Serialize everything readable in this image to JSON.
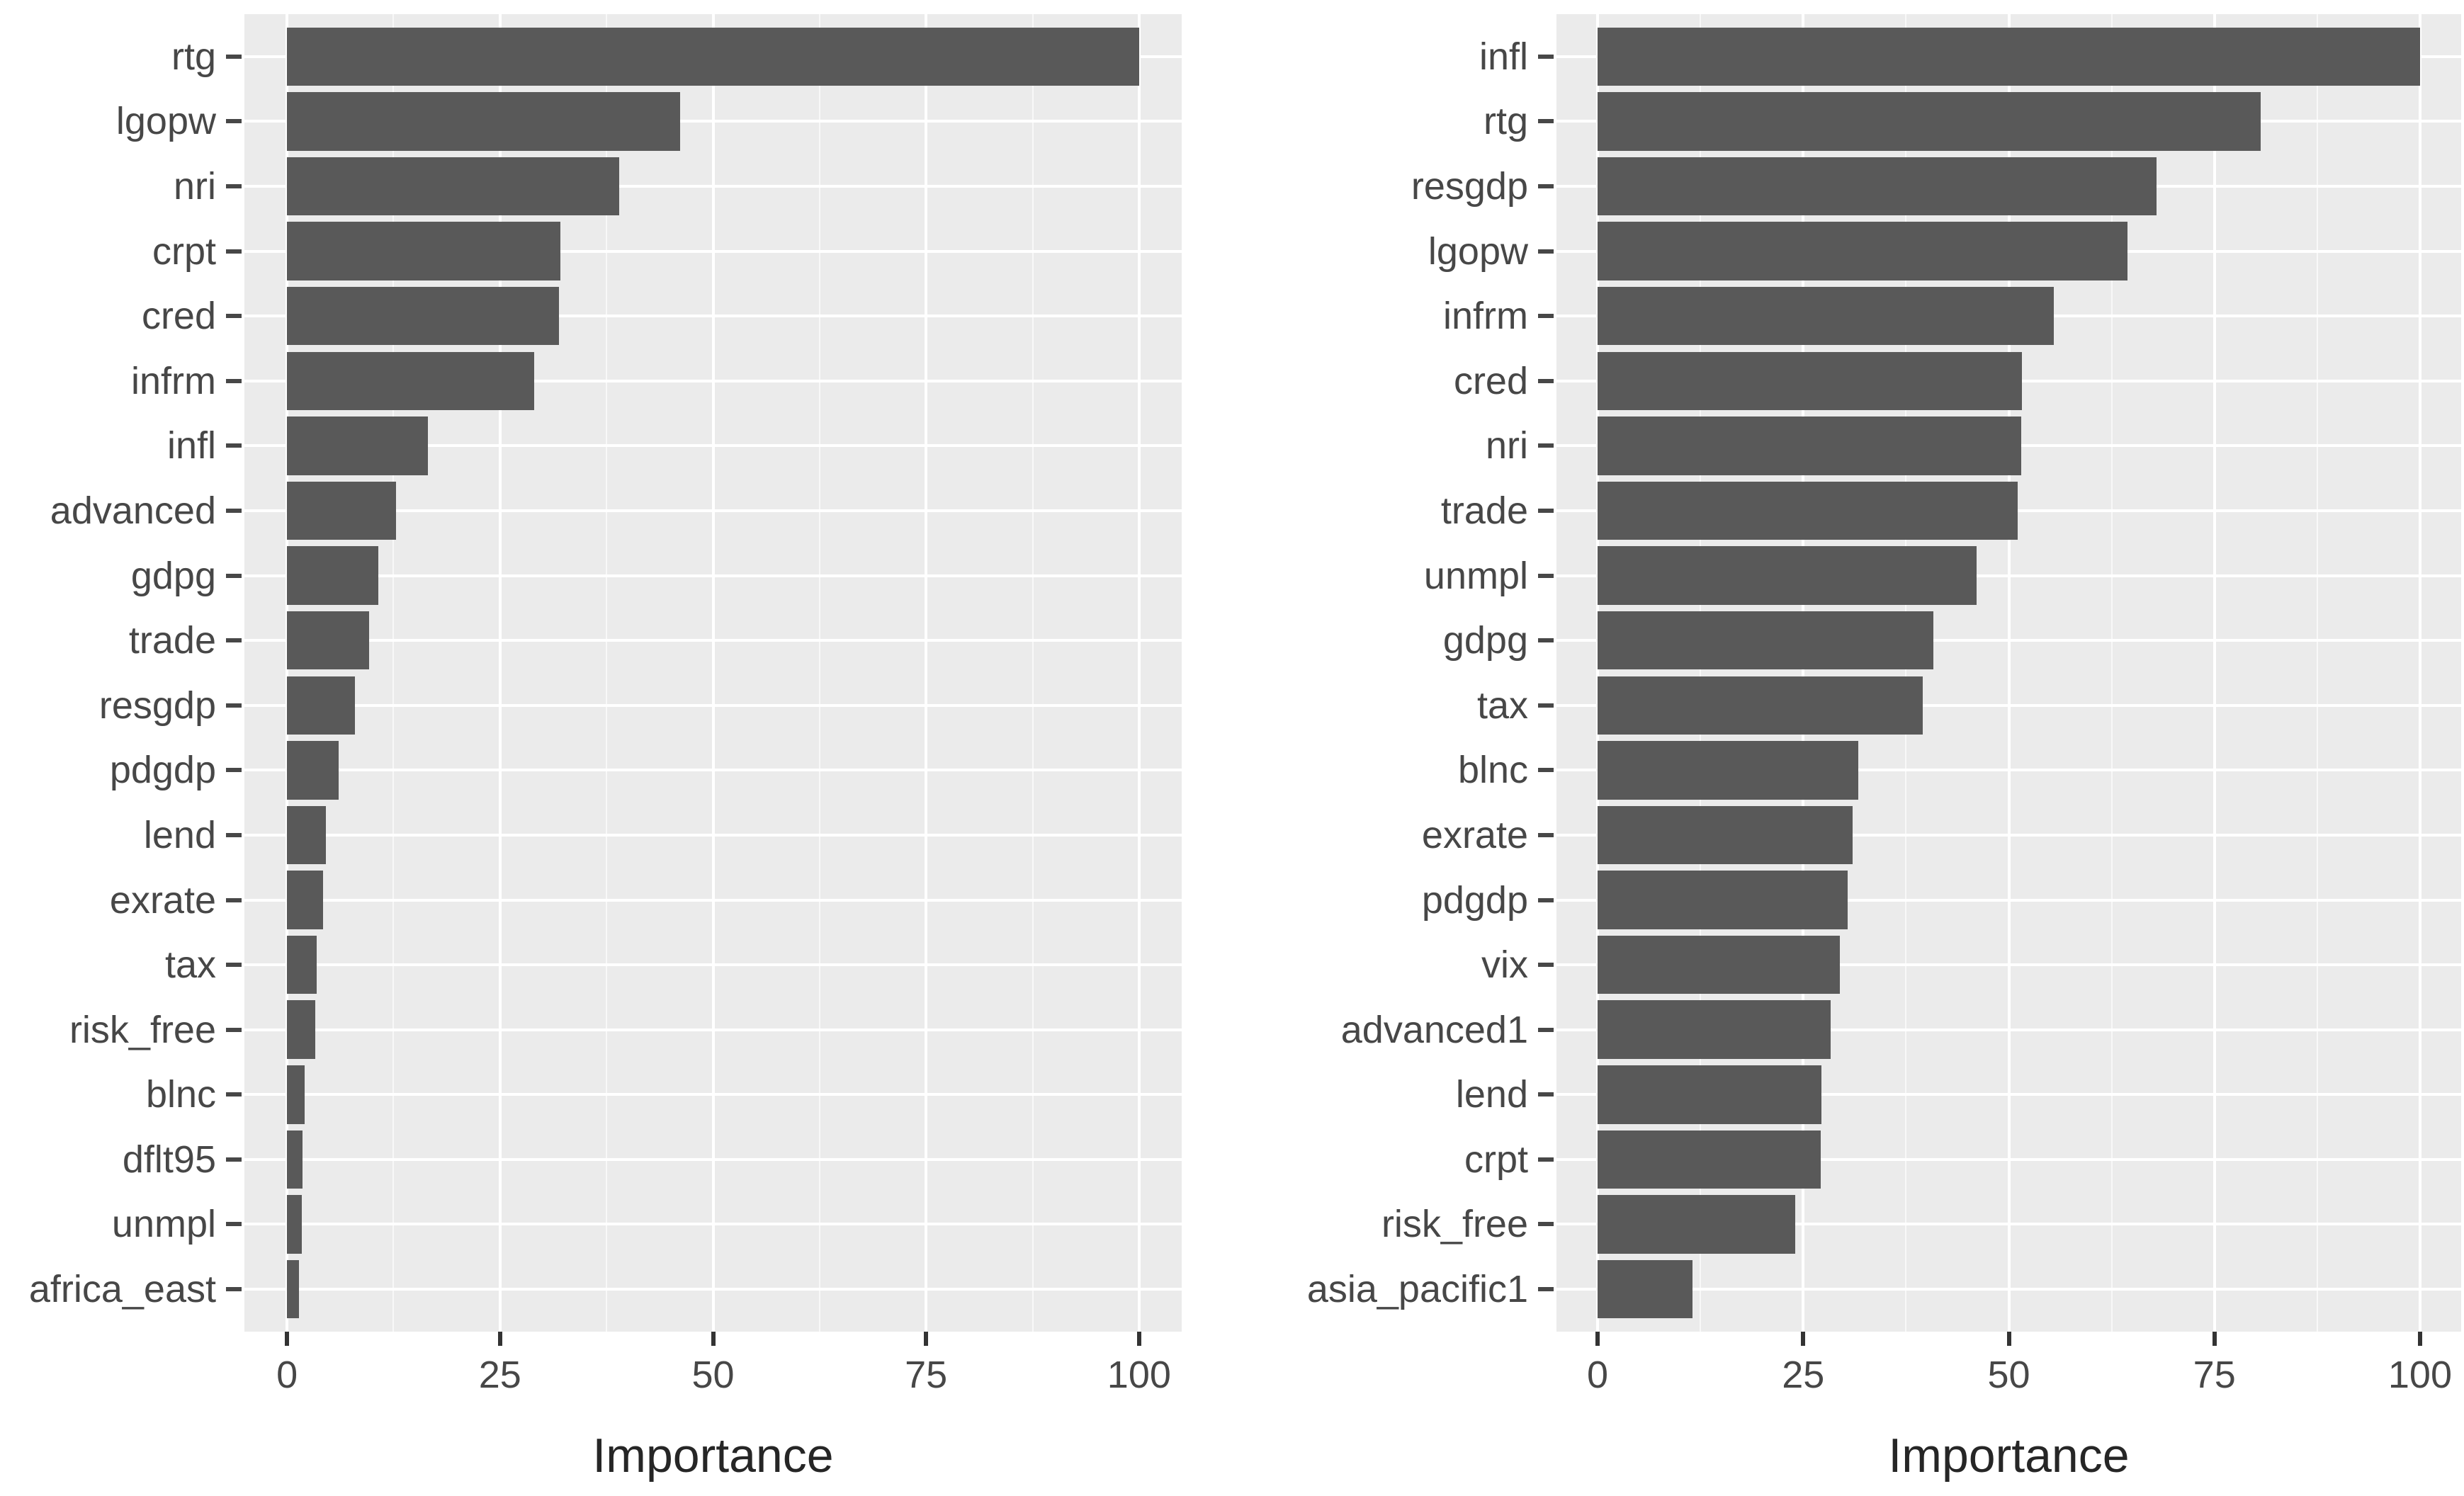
{
  "colors": {
    "background": "#FFFFFF",
    "panel_background": "#EBEBEB",
    "bar_fill": "#595959",
    "grid_line": "#FFFFFF",
    "axis_text": "#474747",
    "axis_title": "#262626",
    "tick_mark": "#333333"
  },
  "chart_data": [
    {
      "type": "bar",
      "orientation": "horizontal",
      "title": "",
      "xlabel": "Importance",
      "ylabel": "",
      "xlim": [
        0,
        100
      ],
      "x_ticks": [
        0,
        25,
        50,
        75,
        100
      ],
      "x_minor_ticks": [
        12.5,
        37.5,
        62.5,
        87.5
      ],
      "grid": true,
      "legend_position": "none",
      "categories": [
        "rtg",
        "lgopw",
        "nri",
        "crpt",
        "cred",
        "infrm",
        "infl",
        "advanced",
        "gdpg",
        "trade",
        "resgdp",
        "pdgdp",
        "lend",
        "exrate",
        "tax",
        "risk_free",
        "blnc",
        "dflt95",
        "unmpl",
        "africa_east"
      ],
      "values": [
        100,
        46.1,
        39.0,
        32.1,
        31.9,
        29.0,
        16.5,
        12.8,
        10.7,
        9.6,
        8.0,
        6.1,
        4.6,
        4.2,
        3.5,
        3.3,
        2.1,
        1.8,
        1.7,
        1.4
      ]
    },
    {
      "type": "bar",
      "orientation": "horizontal",
      "title": "",
      "xlabel": "Importance",
      "ylabel": "",
      "xlim": [
        0,
        100
      ],
      "x_ticks": [
        0,
        25,
        50,
        75,
        100
      ],
      "x_minor_ticks": [
        12.5,
        37.5,
        62.5,
        87.5
      ],
      "grid": true,
      "legend_position": "none",
      "categories": [
        "infl",
        "rtg",
        "resgdp",
        "lgopw",
        "infrm",
        "cred",
        "nri",
        "trade",
        "unmpl",
        "gdpg",
        "tax",
        "blnc",
        "exrate",
        "pdgdp",
        "vix",
        "advanced1",
        "lend",
        "crpt",
        "risk_free",
        "asia_pacific1"
      ],
      "values": [
        100,
        80.6,
        68.0,
        64.4,
        55.5,
        51.6,
        51.5,
        51.1,
        46.1,
        40.8,
        39.5,
        31.7,
        31.0,
        30.4,
        29.5,
        28.3,
        27.2,
        27.1,
        24.0,
        11.5
      ]
    }
  ]
}
